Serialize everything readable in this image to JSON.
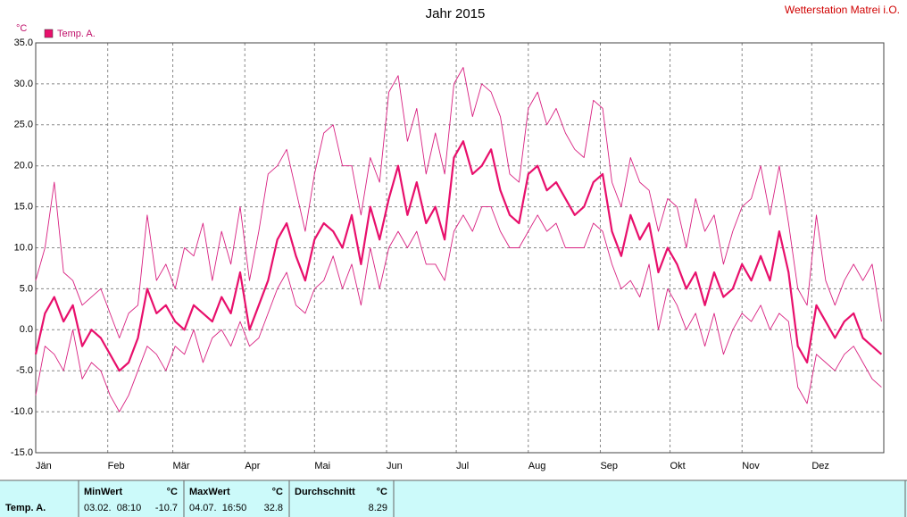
{
  "chart_data": {
    "type": "line",
    "title": "Jahr 2015",
    "station": "Wetterstation Matrei i.O.",
    "y_unit": "°C",
    "xlim": [
      0,
      365
    ],
    "xticks": [
      {
        "value": 0,
        "label": "Jän"
      },
      {
        "value": 31,
        "label": "Feb"
      },
      {
        "value": 59,
        "label": "Mär"
      },
      {
        "value": 90,
        "label": "Apr"
      },
      {
        "value": 120,
        "label": "Mai"
      },
      {
        "value": 151,
        "label": "Jun"
      },
      {
        "value": 181,
        "label": "Jul"
      },
      {
        "value": 212,
        "label": "Aug"
      },
      {
        "value": 243,
        "label": "Sep"
      },
      {
        "value": 273,
        "label": "Okt"
      },
      {
        "value": 304,
        "label": "Nov"
      },
      {
        "value": 334,
        "label": "Dez"
      }
    ],
    "ylim": [
      -15,
      35
    ],
    "yticks": [
      {
        "value": -15,
        "label": "-15.0"
      },
      {
        "value": -10,
        "label": "-10.0"
      },
      {
        "value": -5,
        "label": "-5.0"
      },
      {
        "value": 0,
        "label": "0.0"
      },
      {
        "value": 5,
        "label": "5.0"
      },
      {
        "value": 10,
        "label": "10.0"
      },
      {
        "value": 15,
        "label": "15.0"
      },
      {
        "value": 20,
        "label": "20.0"
      },
      {
        "value": 25,
        "label": "25.0"
      },
      {
        "value": 30,
        "label": "30.0"
      },
      {
        "value": 35,
        "label": "35.0"
      }
    ],
    "grid": true,
    "legend": "top-left",
    "x": [
      0,
      4,
      8,
      12,
      16,
      20,
      24,
      28,
      32,
      36,
      40,
      44,
      48,
      52,
      56,
      60,
      64,
      68,
      72,
      76,
      80,
      84,
      88,
      92,
      96,
      100,
      104,
      108,
      112,
      116,
      120,
      124,
      128,
      132,
      136,
      140,
      144,
      148,
      152,
      156,
      160,
      164,
      168,
      172,
      176,
      180,
      184,
      188,
      192,
      196,
      200,
      204,
      208,
      212,
      216,
      220,
      224,
      228,
      232,
      236,
      240,
      244,
      248,
      252,
      256,
      260,
      264,
      268,
      272,
      276,
      280,
      284,
      288,
      292,
      296,
      300,
      304,
      308,
      312,
      316,
      320,
      324,
      328,
      332,
      336,
      340,
      344,
      348,
      352,
      356,
      360,
      364
    ],
    "series": [
      {
        "name": "Temp. A.",
        "color": "#e8106c",
        "width": 2.2,
        "values": [
          -3,
          2,
          4,
          1,
          3,
          -2,
          0,
          -1,
          -3,
          -5,
          -4,
          -1,
          5,
          2,
          3,
          1,
          0,
          3,
          2,
          1,
          4,
          2,
          7,
          0,
          3,
          6,
          11,
          13,
          9,
          6,
          11,
          13,
          12,
          10,
          14,
          8,
          15,
          11,
          16,
          20,
          14,
          18,
          13,
          15,
          11,
          21,
          23,
          19,
          20,
          22,
          17,
          14,
          13,
          19,
          20,
          17,
          18,
          16,
          14,
          15,
          18,
          19,
          12,
          9,
          14,
          11,
          13,
          7,
          10,
          8,
          5,
          7,
          3,
          7,
          4,
          5,
          8,
          6,
          9,
          6,
          12,
          7,
          -2,
          -4,
          3,
          1,
          -1,
          1,
          2,
          -1,
          -2,
          -3
        ]
      },
      {
        "color": "#d82080",
        "width": 0.9,
        "values": [
          6,
          10,
          18,
          7,
          6,
          3,
          4,
          5,
          2,
          -1,
          2,
          3,
          14,
          6,
          8,
          5,
          10,
          9,
          13,
          6,
          12,
          8,
          15,
          6,
          12,
          19,
          20,
          22,
          17,
          12,
          19,
          24,
          25,
          20,
          20,
          14,
          21,
          18,
          29,
          31,
          23,
          27,
          19,
          24,
          19,
          30,
          32,
          26,
          30,
          29,
          26,
          19,
          18,
          27,
          29,
          25,
          27,
          24,
          22,
          21,
          28,
          27,
          18,
          15,
          21,
          18,
          17,
          12,
          16,
          15,
          10,
          16,
          12,
          14,
          8,
          12,
          15,
          16,
          20,
          14,
          20,
          13,
          5,
          3,
          14,
          6,
          3,
          6,
          8,
          6,
          8,
          1
        ]
      },
      {
        "color": "#d82080",
        "width": 0.9,
        "values": [
          -8,
          -2,
          -3,
          -5,
          0,
          -6,
          -4,
          -5,
          -8,
          -10,
          -8,
          -5,
          -2,
          -3,
          -5,
          -2,
          -3,
          0,
          -4,
          -1,
          0,
          -2,
          1,
          -2,
          -1,
          2,
          5,
          7,
          3,
          2,
          5,
          6,
          9,
          5,
          8,
          3,
          10,
          5,
          10,
          12,
          10,
          12,
          8,
          8,
          6,
          12,
          14,
          12,
          15,
          15,
          12,
          10,
          10,
          12,
          14,
          12,
          13,
          10,
          10,
          10,
          13,
          12,
          8,
          5,
          6,
          4,
          8,
          0,
          5,
          3,
          0,
          2,
          -2,
          2,
          -3,
          0,
          2,
          1,
          3,
          0,
          2,
          1,
          -7,
          -9,
          -3,
          -4,
          -5,
          -3,
          -2,
          -4,
          -6,
          -7
        ]
      }
    ]
  },
  "table": {
    "row_label": "Temp. A.",
    "columns": [
      {
        "header": "MinWert",
        "unit": "°C",
        "time": "03.02.  08:10",
        "value": -10.7
      },
      {
        "header": "MaxWert",
        "unit": "°C",
        "time": "04.07.  16:50",
        "value": 32.8
      },
      {
        "header": "Durchschnitt",
        "unit": "°C",
        "value": 8.29
      }
    ]
  }
}
